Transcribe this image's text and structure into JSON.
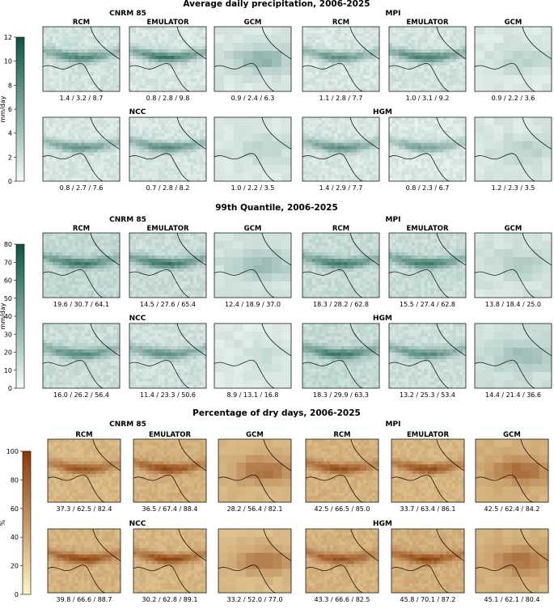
{
  "chart_data": [
    {
      "type": "heatmap",
      "title": "Average daily precipitation, 2006-2025",
      "colorbar": {
        "label": "mm/day",
        "range": [
          0,
          12
        ],
        "ticks": [
          0,
          2,
          4,
          6,
          8,
          10,
          12
        ],
        "colors": [
          "#f4fbf9",
          "#0b5444"
        ]
      },
      "models": [
        {
          "name": "CNRM 85",
          "panels": [
            {
              "title": "RCM",
              "stats": "1.4 / 3.2 / 8.7"
            },
            {
              "title": "EMULATOR",
              "stats": "0.8 / 2.8 / 9.8"
            },
            {
              "title": "GCM",
              "stats": "0.9 / 2.4 / 6.3"
            }
          ]
        },
        {
          "name": "MPI",
          "panels": [
            {
              "title": "RCM",
              "stats": "1.1 / 2.8 / 7.7"
            },
            {
              "title": "EMULATOR",
              "stats": "1.0 / 3.1 / 9.2"
            },
            {
              "title": "GCM",
              "stats": "0.9 / 2.2 / 3.6"
            }
          ]
        },
        {
          "name": "NCC",
          "panels": [
            {
              "title": "",
              "stats": "0.8 / 2.7 / 7.6"
            },
            {
              "title": "",
              "stats": "0.7 / 2.8 / 8.2"
            },
            {
              "title": "",
              "stats": "1.0 / 2.2 / 3.5"
            }
          ]
        },
        {
          "name": "HGM",
          "panels": [
            {
              "title": "",
              "stats": "1.4 / 2.9 / 7.7"
            },
            {
              "title": "",
              "stats": "0.8 / 2.3 / 6.7"
            },
            {
              "title": "",
              "stats": "1.2 / 2.3 / 3.5"
            }
          ]
        }
      ]
    },
    {
      "type": "heatmap",
      "title": "99th Quantile, 2006-2025",
      "colorbar": {
        "label": "mm/day",
        "range": [
          0,
          80
        ],
        "ticks": [
          0,
          10,
          20,
          30,
          40,
          50,
          60,
          70,
          80
        ],
        "colors": [
          "#f4fbf9",
          "#0b5444"
        ]
      },
      "models": [
        {
          "name": "CNRM 85",
          "panels": [
            {
              "title": "RCM",
              "stats": "19.6 / 30.7 / 64.1"
            },
            {
              "title": "EMULATOR",
              "stats": "14.5 / 27.6 / 65.4"
            },
            {
              "title": "GCM",
              "stats": "12.4 / 18.9 / 37.0"
            }
          ]
        },
        {
          "name": "MPI",
          "panels": [
            {
              "title": "RCM",
              "stats": "18.3 / 28.2 / 62.8"
            },
            {
              "title": "EMULATOR",
              "stats": "15.5 / 27.4 / 62.8"
            },
            {
              "title": "GCM",
              "stats": "13.8 / 18.4 / 25.0"
            }
          ]
        },
        {
          "name": "NCC",
          "panels": [
            {
              "title": "",
              "stats": "16.0 / 26.2 / 56.4"
            },
            {
              "title": "",
              "stats": "11.4 / 23.3 / 50.6"
            },
            {
              "title": "",
              "stats": "8.9 / 13.1 / 16.8"
            }
          ]
        },
        {
          "name": "HGM",
          "panels": [
            {
              "title": "",
              "stats": "18.3 / 29.9 / 63.3"
            },
            {
              "title": "",
              "stats": "13.2 / 25.3 / 53.4"
            },
            {
              "title": "",
              "stats": "14.4 / 21.4 / 36.6"
            }
          ]
        }
      ]
    },
    {
      "type": "heatmap",
      "title": "Percentage of dry days, 2006-2025",
      "colorbar": {
        "label": "%",
        "range": [
          0,
          100
        ],
        "ticks": [
          0,
          20,
          40,
          60,
          80,
          100
        ],
        "colors": [
          "#fff7c4",
          "#8a3a08"
        ]
      },
      "models": [
        {
          "name": "CNRM 85",
          "panels": [
            {
              "title": "RCM",
              "stats": "37.3 / 62.5 / 82.4"
            },
            {
              "title": "EMULATOR",
              "stats": "36.5 / 67.4 / 88.4"
            },
            {
              "title": "GCM",
              "stats": "28.2 / 56.4 / 82.1"
            }
          ]
        },
        {
          "name": "MPI",
          "panels": [
            {
              "title": "RCM",
              "stats": "42.5 / 66.5 / 85.0"
            },
            {
              "title": "EMULATOR",
              "stats": "33.7 / 63.4 / 86.1"
            },
            {
              "title": "GCM",
              "stats": "42.5 / 62.4 / 84.2"
            }
          ]
        },
        {
          "name": "NCC",
          "panels": [
            {
              "title": "",
              "stats": "39.8 / 66.6 / 88.7"
            },
            {
              "title": "",
              "stats": "30.2 / 62.8 / 89.1"
            },
            {
              "title": "",
              "stats": "33.2 / 52.0 / 77.0"
            }
          ]
        },
        {
          "name": "HGM",
          "panels": [
            {
              "title": "",
              "stats": "43.3 / 66.6 / 82.5"
            },
            {
              "title": "",
              "stats": "45.8 / 70.1 / 87.2"
            },
            {
              "title": "",
              "stats": "45.1 / 62.1 / 80.4"
            }
          ]
        }
      ]
    }
  ]
}
